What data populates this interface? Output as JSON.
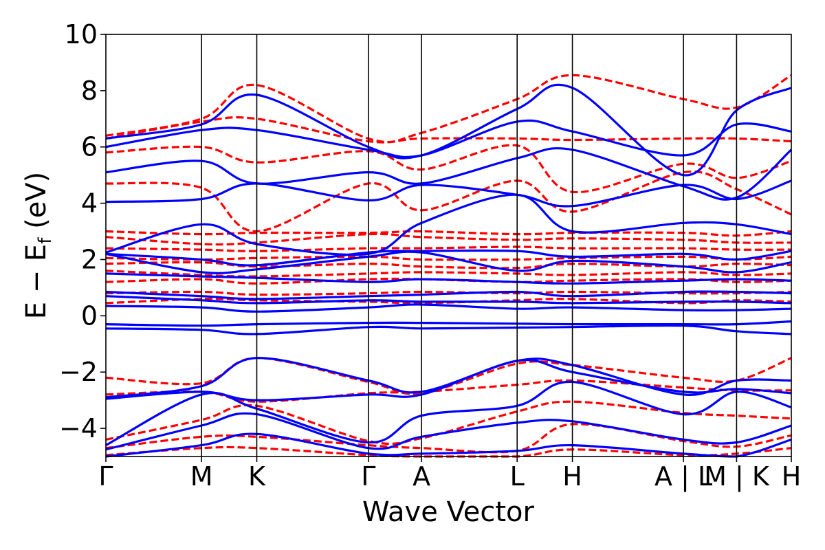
{
  "chart_data": {
    "type": "line",
    "title": "",
    "xlabel": "Wave Vector",
    "ylabel": "E − E",
    "ylabel_sub": "f",
    "ylabel_unit": " (eV)",
    "ylim": [
      -5,
      10
    ],
    "xlim": [
      0,
      12.9
    ],
    "yticks": [
      -4,
      -2,
      0,
      2,
      4,
      6,
      8,
      10
    ],
    "ytick_labels": [
      "−4",
      "−2",
      "0",
      "2",
      "4",
      "6",
      "8",
      "10"
    ],
    "grid": false,
    "legend": "none",
    "high_symmetry_points": [
      {
        "label": "Γ",
        "x": 0.0
      },
      {
        "label": "M",
        "x": 1.8
      },
      {
        "label": "K",
        "x": 2.84
      },
      {
        "label": "Γ",
        "x": 4.94
      },
      {
        "label": "A",
        "x": 5.94
      },
      {
        "label": "L",
        "x": 7.74
      },
      {
        "label": "H",
        "x": 8.78
      },
      {
        "label": "A | L",
        "x": 10.87
      },
      {
        "label": "M | K",
        "x": 11.87
      },
      {
        "label": "H",
        "x": 12.9
      }
    ],
    "colors": {
      "solid": "#0000ff",
      "dashed": "#ff0000",
      "vlines": "#000000"
    },
    "series": [
      {
        "style": "solid",
        "color": "#0000ff",
        "bands": [
          [
            -0.45,
            -0.5,
            -0.65,
            -0.4,
            -0.45,
            -0.42,
            -0.4,
            -0.35,
            -0.55,
            -0.65
          ],
          [
            -0.3,
            -0.35,
            -0.3,
            -0.25,
            -0.25,
            -0.28,
            -0.3,
            -0.3,
            -0.3,
            -0.2
          ],
          [
            0.35,
            0.3,
            0.15,
            0.3,
            0.4,
            0.25,
            0.3,
            0.2,
            0.2,
            0.25
          ],
          [
            0.7,
            0.55,
            0.45,
            0.55,
            0.5,
            0.5,
            0.45,
            0.5,
            0.5,
            0.45
          ],
          [
            0.85,
            0.7,
            0.6,
            0.7,
            0.75,
            0.85,
            0.7,
            0.85,
            0.85,
            0.8
          ],
          [
            1.5,
            1.4,
            1.35,
            1.2,
            1.3,
            1.2,
            1.15,
            1.25,
            1.3,
            1.25
          ],
          [
            2.2,
            1.55,
            1.65,
            2.1,
            2.25,
            1.6,
            1.95,
            1.75,
            1.55,
            1.9
          ],
          [
            2.2,
            2.0,
            1.8,
            2.25,
            2.3,
            2.3,
            2.1,
            2.2,
            2.0,
            2.3
          ],
          [
            2.25,
            3.25,
            2.55,
            2.2,
            3.3,
            4.3,
            3.0,
            3.3,
            3.25,
            2.9
          ],
          [
            4.05,
            4.15,
            4.7,
            4.1,
            4.65,
            4.3,
            3.9,
            4.65,
            4.15,
            4.8
          ],
          [
            5.1,
            5.5,
            4.7,
            5.1,
            4.7,
            5.6,
            5.9,
            4.6,
            4.2,
            5.9
          ],
          [
            6.0,
            6.6,
            6.6,
            5.9,
            5.7,
            6.9,
            6.55,
            5.7,
            6.8,
            6.55
          ],
          [
            6.3,
            6.8,
            7.85,
            6.0,
            5.7,
            7.35,
            8.1,
            5.0,
            7.3,
            8.1
          ],
          [
            -2.9,
            -2.5,
            -1.5,
            -2.3,
            -2.7,
            -1.6,
            -1.75,
            -2.8,
            -2.3,
            -2.3
          ],
          [
            -2.95,
            -2.7,
            -3.0,
            -2.8,
            -2.8,
            -1.6,
            -2.0,
            -2.7,
            -2.6,
            -2.75
          ],
          [
            -4.6,
            -2.8,
            -3.3,
            -4.5,
            -3.55,
            -3.2,
            -2.35,
            -3.5,
            -2.7,
            -3.25
          ],
          [
            -4.75,
            -3.9,
            -3.5,
            -4.7,
            -4.3,
            -3.8,
            -3.75,
            -4.4,
            -4.5,
            -3.9
          ],
          [
            -5.0,
            -4.6,
            -4.2,
            -4.9,
            -4.9,
            -4.8,
            -4.6,
            -4.9,
            -5.0,
            -4.4
          ]
        ]
      },
      {
        "style": "dashed",
        "color": "#ff0000",
        "bands": [
          [
            0.45,
            0.6,
            0.55,
            0.5,
            0.45,
            0.55,
            0.6,
            0.45,
            0.55,
            0.5
          ],
          [
            0.8,
            0.85,
            0.75,
            0.8,
            0.85,
            0.8,
            0.85,
            0.8,
            0.8,
            0.85
          ],
          [
            1.2,
            1.3,
            1.15,
            1.3,
            1.3,
            1.2,
            1.25,
            1.3,
            1.2,
            1.25
          ],
          [
            1.6,
            1.45,
            1.4,
            1.5,
            1.55,
            1.5,
            1.45,
            1.55,
            1.45,
            1.5
          ],
          [
            1.85,
            1.9,
            1.75,
            1.85,
            1.75,
            1.7,
            1.85,
            1.75,
            1.85,
            1.8
          ],
          [
            2.05,
            2.0,
            2.05,
            2.1,
            2.0,
            2.0,
            2.05,
            2.1,
            2.0,
            2.1
          ],
          [
            2.4,
            2.35,
            2.3,
            2.4,
            2.4,
            2.45,
            2.4,
            2.4,
            2.35,
            2.35
          ],
          [
            2.8,
            2.55,
            2.6,
            2.9,
            2.8,
            2.7,
            2.75,
            2.7,
            2.6,
            2.6
          ],
          [
            3.0,
            2.9,
            2.95,
            2.95,
            3.0,
            2.9,
            2.95,
            2.95,
            2.85,
            3.0
          ],
          [
            4.7,
            4.55,
            3.0,
            4.7,
            3.75,
            4.8,
            3.7,
            5.1,
            4.5,
            3.6
          ],
          [
            5.8,
            6.0,
            5.45,
            5.85,
            5.2,
            6.05,
            4.4,
            5.4,
            4.9,
            5.5
          ],
          [
            6.3,
            6.9,
            7.0,
            6.2,
            6.3,
            6.3,
            6.25,
            6.3,
            6.3,
            6.2
          ],
          [
            6.4,
            7.0,
            8.2,
            6.3,
            6.5,
            7.7,
            8.55,
            7.7,
            7.4,
            8.55
          ],
          [
            -2.2,
            -2.4,
            -1.5,
            -2.35,
            -2.75,
            -1.7,
            -1.75,
            -2.2,
            -2.3,
            -1.5
          ],
          [
            -2.8,
            -2.7,
            -3.05,
            -2.75,
            -2.7,
            -2.45,
            -2.3,
            -2.55,
            -2.65,
            -2.65
          ],
          [
            -4.4,
            -3.7,
            -3.2,
            -4.45,
            -4.35,
            -3.4,
            -3.05,
            -3.45,
            -3.55,
            -3.65
          ],
          [
            -4.7,
            -4.3,
            -4.3,
            -4.6,
            -4.7,
            -4.8,
            -3.85,
            -4.45,
            -4.65,
            -4.25
          ],
          [
            -4.95,
            -4.7,
            -4.7,
            -4.95,
            -5.0,
            -5.0,
            -4.75,
            -4.95,
            -4.9,
            -4.7
          ]
        ]
      }
    ]
  }
}
